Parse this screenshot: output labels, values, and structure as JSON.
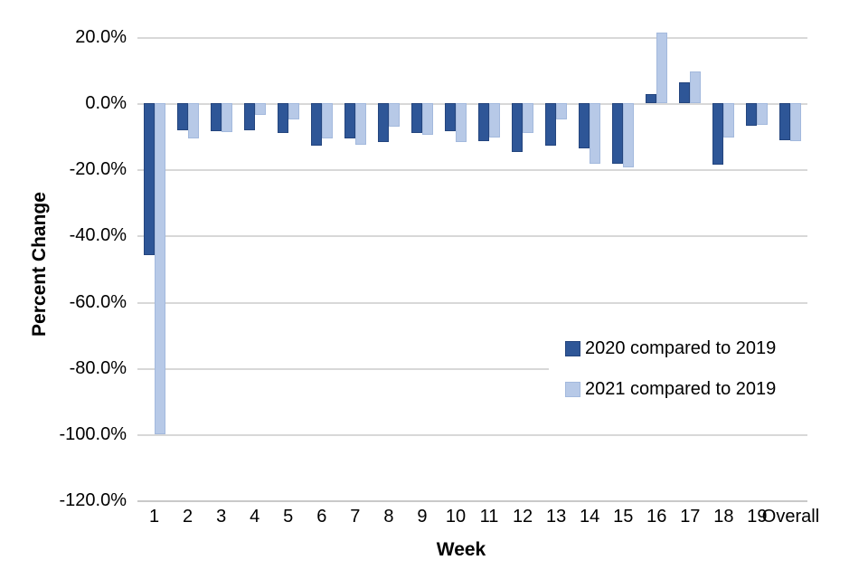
{
  "chart_data": {
    "type": "bar",
    "xlabel": "Week",
    "ylabel": "Percent Change",
    "categories": [
      "1",
      "2",
      "3",
      "4",
      "5",
      "6",
      "7",
      "8",
      "9",
      "10",
      "11",
      "12",
      "13",
      "14",
      "15",
      "16",
      "17",
      "18",
      "19",
      "Overall"
    ],
    "series": [
      {
        "name": "2020 compared to 2019",
        "color": "#2E5697",
        "border_color": "#24457E",
        "values": [
          -46.0,
          -8.2,
          -8.5,
          -8.2,
          -8.9,
          -12.7,
          -10.7,
          -11.8,
          -8.9,
          -8.5,
          -11.5,
          -14.8,
          -12.8,
          -13.5,
          -18.3,
          2.7,
          6.4,
          -18.5,
          -6.9,
          -11.2
        ]
      },
      {
        "name": "2021 compared to 2019",
        "color": "#B7C9E7",
        "border_color": "#A3B9DD",
        "values": [
          -100.0,
          -10.5,
          -8.8,
          -3.5,
          -4.8,
          -10.7,
          -12.5,
          -7.1,
          -9.6,
          -11.8,
          -10.3,
          -8.9,
          -5.0,
          -18.3,
          -19.5,
          21.5,
          9.5,
          -10.3,
          -6.5,
          -11.4
        ]
      }
    ],
    "ylim": [
      -120,
      20
    ],
    "yticks": [
      20,
      0,
      -20,
      -40,
      -60,
      -80,
      -100,
      -120
    ],
    "ytick_labels": [
      "20.0%",
      "0.0%",
      "-20.0%",
      "-40.0%",
      "-60.0%",
      "-80.0%",
      "-100.0%",
      "-120.0%"
    ],
    "grid": "horizontal-gridlines-on",
    "gridline_color": "#D8D8D8",
    "legend_position": "inside-right-middle",
    "legend_background": "#FFFFFF"
  }
}
